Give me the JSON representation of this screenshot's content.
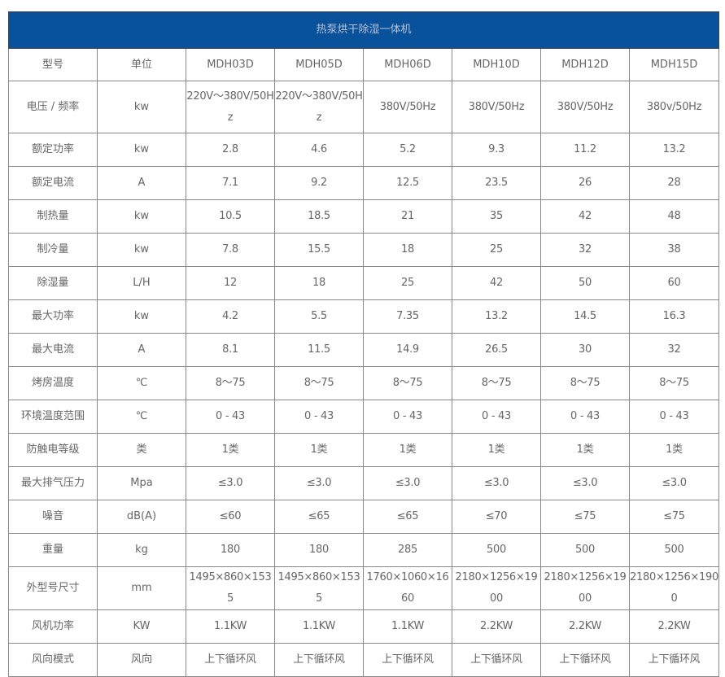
{
  "table": {
    "title": "热泵烘干除湿一体机",
    "header": [
      "型号",
      "单位",
      "MDH03D",
      "MDH05D",
      "MDH06D",
      "MDH10D",
      "MDH12D",
      "MDH15D"
    ],
    "rows": [
      [
        "电压 / 频率",
        "kw",
        "220V～380V/50Hz",
        "220V～380V/50Hz",
        "380V/50Hz",
        "380V/50Hz",
        "380V/50Hz",
        "380v/50Hz"
      ],
      [
        "额定功率",
        "kw",
        "2.8",
        "4.6",
        "5.2",
        "9.3",
        "11.2",
        "13.2"
      ],
      [
        "额定电流",
        "A",
        "7.1",
        "9.2",
        "12.5",
        "23.5",
        "26",
        "28"
      ],
      [
        "制热量",
        "kw",
        "10.5",
        "18.5",
        "21",
        "35",
        "42",
        "48"
      ],
      [
        "制冷量",
        "kw",
        "7.8",
        "15.5",
        "18",
        "25",
        "32",
        "38"
      ],
      [
        "除湿量",
        "L/H",
        "12",
        "18",
        "25",
        "42",
        "50",
        "60"
      ],
      [
        "最大功率",
        "kw",
        "4.2",
        "5.5",
        "7.35",
        "13.2",
        "14.5",
        "16.3"
      ],
      [
        "最大电流",
        "A",
        "8.1",
        "11.5",
        "14.9",
        "26.5",
        "30",
        "32"
      ],
      [
        "烤房温度",
        "℃",
        "8～75",
        "8～75",
        "8～75",
        "8～75",
        "8～75",
        "8～75"
      ],
      [
        "环境温度范围",
        "℃",
        "0 - 43",
        "0 - 43",
        "0 - 43",
        "0 - 43",
        "0 - 43",
        "0 - 43"
      ],
      [
        "防触电等级",
        "类",
        "1类",
        "1类",
        "1类",
        "1类",
        "1类",
        "1类"
      ],
      [
        "最大排气压力",
        "Mpa",
        "≤3.0",
        "≤3.0",
        "≤3.0",
        "≤3.0",
        "≤3.0",
        "≤3.0"
      ],
      [
        "噪音",
        "dB(A)",
        "≤60",
        "≤65",
        "≤65",
        "≤70",
        "≤75",
        "≤75"
      ],
      [
        "重量",
        "kg",
        "180",
        "180",
        "285",
        "500",
        "500",
        "500"
      ],
      [
        "外型号尺寸",
        "mm",
        "1495×860×1535",
        "1495×860×1535",
        "1760×1060×1660",
        "2180×1256×1900",
        "2180×1256×1900",
        "2180×1256×1900"
      ],
      [
        "风机功率",
        "KW",
        "1.1KW",
        "1.1KW",
        "1.1KW",
        "2.2KW",
        "2.2KW",
        "2.2KW"
      ],
      [
        "风向模式",
        "风向",
        "上下循环风",
        "上下循环风",
        "上下循环风",
        "上下循环风",
        "上下循环风",
        "上下循环风"
      ]
    ]
  },
  "colors": {
    "header_bg": "#0a519b",
    "text": "#666666",
    "border": "#888888"
  }
}
